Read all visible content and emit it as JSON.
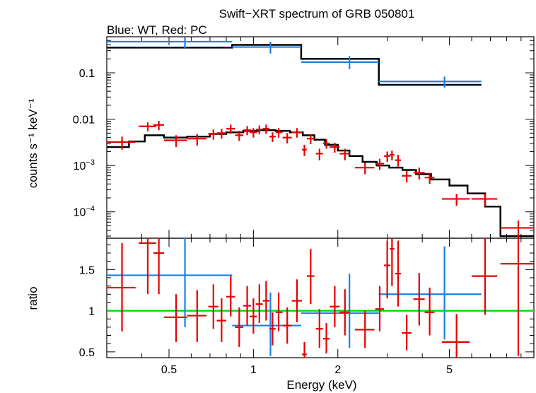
{
  "chart_data": [
    {
      "type": "scatter",
      "title": "Swift−XRT spectrum of GRB 050801",
      "subtitle": "Blue: WT, Red: PC",
      "ylabel": "counts s⁻¹ keV⁻¹",
      "yscale": "log",
      "xscale": "log",
      "xlim": [
        0.3,
        10
      ],
      "ylim": [
        2.7e-05,
        0.6
      ],
      "x_ticks": [
        0.5,
        1,
        2,
        5
      ],
      "y_tick_labels": [
        {
          "value": 0.1,
          "base": "0.1",
          "exp": ""
        },
        {
          "value": 0.01,
          "base": "0.01",
          "exp": ""
        },
        {
          "value": 0.001,
          "base": "10",
          "exp": "−3"
        },
        {
          "value": 0.0001,
          "base": "10",
          "exp": "−4"
        }
      ],
      "colors": {
        "WT": "#1a80e6",
        "PC": "#e60000",
        "model": "#000000"
      },
      "series": [
        {
          "points": [
            {
              "x": 0.57,
              "xlo": 0.3,
              "xhi": 0.84,
              "y": 0.47,
              "ylo": 0.34,
              "yhi": 0.6
            },
            {
              "x": 1.15,
              "xlo": 0.84,
              "xhi": 1.48,
              "y": 0.36,
              "ylo": 0.26,
              "yhi": 0.47
            },
            {
              "x": 2.2,
              "xlo": 1.48,
              "xhi": 2.8,
              "y": 0.17,
              "ylo": 0.12,
              "yhi": 0.23
            },
            {
              "x": 4.8,
              "xlo": 2.8,
              "xhi": 6.5,
              "y": 0.065,
              "ylo": 0.048,
              "yhi": 0.083
            }
          ]
        },
        {
          "points": [
            {
              "x": 0.34,
              "xlo": 0.3,
              "xhi": 0.38,
              "y": 0.0032,
              "ylo": 0.0022,
              "yhi": 0.0042
            },
            {
              "x": 0.42,
              "xlo": 0.39,
              "xhi": 0.45,
              "y": 0.007,
              "ylo": 0.0055,
              "yhi": 0.0085
            },
            {
              "x": 0.46,
              "xlo": 0.44,
              "xhi": 0.48,
              "y": 0.0075,
              "ylo": 0.0058,
              "yhi": 0.0092
            },
            {
              "x": 0.53,
              "xlo": 0.48,
              "xhi": 0.58,
              "y": 0.0035,
              "ylo": 0.0025,
              "yhi": 0.0045
            },
            {
              "x": 0.63,
              "xlo": 0.58,
              "xhi": 0.68,
              "y": 0.0038,
              "ylo": 0.0027,
              "yhi": 0.0048
            },
            {
              "x": 0.72,
              "xlo": 0.69,
              "xhi": 0.75,
              "y": 0.0048,
              "ylo": 0.0036,
              "yhi": 0.006
            },
            {
              "x": 0.77,
              "xlo": 0.74,
              "xhi": 0.8,
              "y": 0.005,
              "ylo": 0.0038,
              "yhi": 0.0062
            },
            {
              "x": 0.83,
              "xlo": 0.8,
              "xhi": 0.86,
              "y": 0.0062,
              "ylo": 0.0048,
              "yhi": 0.0076
            },
            {
              "x": 0.89,
              "xlo": 0.86,
              "xhi": 0.92,
              "y": 0.0045,
              "ylo": 0.0034,
              "yhi": 0.0056
            },
            {
              "x": 0.95,
              "xlo": 0.92,
              "xhi": 0.98,
              "y": 0.0058,
              "ylo": 0.0045,
              "yhi": 0.0071
            },
            {
              "x": 1.0,
              "xlo": 0.97,
              "xhi": 1.03,
              "y": 0.0052,
              "ylo": 0.004,
              "yhi": 0.0064
            },
            {
              "x": 1.05,
              "xlo": 1.02,
              "xhi": 1.08,
              "y": 0.006,
              "ylo": 0.0047,
              "yhi": 0.0073
            },
            {
              "x": 1.11,
              "xlo": 1.08,
              "xhi": 1.14,
              "y": 0.0062,
              "ylo": 0.0048,
              "yhi": 0.0076
            },
            {
              "x": 1.17,
              "xlo": 1.14,
              "xhi": 1.2,
              "y": 0.0042,
              "ylo": 0.0032,
              "yhi": 0.0052
            },
            {
              "x": 1.23,
              "xlo": 1.2,
              "xhi": 1.27,
              "y": 0.0052,
              "ylo": 0.004,
              "yhi": 0.0064
            },
            {
              "x": 1.32,
              "xlo": 1.27,
              "xhi": 1.37,
              "y": 0.004,
              "ylo": 0.003,
              "yhi": 0.005
            },
            {
              "x": 1.43,
              "xlo": 1.37,
              "xhi": 1.49,
              "y": 0.0052,
              "ylo": 0.004,
              "yhi": 0.0064
            },
            {
              "x": 1.52,
              "xlo": 1.49,
              "xhi": 1.55,
              "y": 0.0022,
              "ylo": 0.0016,
              "yhi": 0.0028
            },
            {
              "x": 1.6,
              "xlo": 1.55,
              "xhi": 1.65,
              "y": 0.0038,
              "ylo": 0.0029,
              "yhi": 0.0047
            },
            {
              "x": 1.72,
              "xlo": 1.67,
              "xhi": 1.77,
              "y": 0.0018,
              "ylo": 0.0013,
              "yhi": 0.0023
            },
            {
              "x": 1.82,
              "xlo": 1.77,
              "xhi": 1.87,
              "y": 0.003,
              "ylo": 0.0023,
              "yhi": 0.0037
            },
            {
              "x": 1.95,
              "xlo": 1.87,
              "xhi": 2.03,
              "y": 0.0025,
              "ylo": 0.0019,
              "yhi": 0.0031
            },
            {
              "x": 2.12,
              "xlo": 2.03,
              "xhi": 2.21,
              "y": 0.0018,
              "ylo": 0.0013,
              "yhi": 0.0023
            },
            {
              "x": 2.5,
              "xlo": 2.3,
              "xhi": 2.7,
              "y": 0.0009,
              "ylo": 0.00065,
              "yhi": 0.00115
            },
            {
              "x": 2.82,
              "xlo": 2.72,
              "xhi": 2.92,
              "y": 0.0011,
              "ylo": 0.0008,
              "yhi": 0.0014
            },
            {
              "x": 3.0,
              "xlo": 2.92,
              "xhi": 3.08,
              "y": 0.0016,
              "ylo": 0.0012,
              "yhi": 0.002
            },
            {
              "x": 3.12,
              "xlo": 3.06,
              "xhi": 3.18,
              "y": 0.0017,
              "ylo": 0.0013,
              "yhi": 0.0021
            },
            {
              "x": 3.28,
              "xlo": 3.2,
              "xhi": 3.36,
              "y": 0.0013,
              "ylo": 0.00095,
              "yhi": 0.0017
            },
            {
              "x": 3.52,
              "xlo": 3.38,
              "xhi": 3.66,
              "y": 0.0006,
              "ylo": 0.00043,
              "yhi": 0.00077
            },
            {
              "x": 3.9,
              "xlo": 3.72,
              "xhi": 4.08,
              "y": 0.0007,
              "ylo": 0.0005,
              "yhi": 0.0009
            },
            {
              "x": 4.25,
              "xlo": 4.08,
              "xhi": 4.42,
              "y": 0.00055,
              "ylo": 0.0004,
              "yhi": 0.0007
            },
            {
              "x": 5.3,
              "xlo": 4.7,
              "xhi": 5.9,
              "y": 0.00019,
              "ylo": 0.000135,
              "yhi": 0.000245
            },
            {
              "x": 6.7,
              "xlo": 6.0,
              "xhi": 7.4,
              "y": 0.00019,
              "ylo": 0.000135,
              "yhi": 0.000245
            },
            {
              "x": 8.8,
              "xlo": 7.6,
              "xhi": 10.0,
              "y": 4.5e-05,
              "ylo": 2.7e-05,
              "yhi": 6.5e-05
            }
          ]
        }
      ],
      "models": [
        {
          "steps": [
            [
              0.3,
              0.35
            ],
            [
              0.84,
              0.4
            ],
            [
              1.48,
              0.4
            ],
            [
              1.48,
              0.2
            ],
            [
              2.8,
              0.2
            ],
            [
              2.8,
              0.055
            ],
            [
              6.5,
              0.055
            ]
          ]
        },
        {
          "steps": [
            [
              0.3,
              0.0025
            ],
            [
              0.36,
              0.0033
            ],
            [
              0.41,
              0.0045
            ],
            [
              0.48,
              0.004
            ],
            [
              0.58,
              0.0042
            ],
            [
              0.7,
              0.0048
            ],
            [
              0.8,
              0.0052
            ],
            [
              0.92,
              0.0056
            ],
            [
              1.05,
              0.0058
            ],
            [
              1.2,
              0.0056
            ],
            [
              1.35,
              0.0052
            ],
            [
              1.5,
              0.0045
            ],
            [
              1.65,
              0.0036
            ],
            [
              1.8,
              0.0028
            ],
            [
              2.0,
              0.0021
            ],
            [
              2.2,
              0.0016
            ],
            [
              2.45,
              0.0012
            ],
            [
              2.75,
              0.001
            ],
            [
              3.05,
              0.0009
            ],
            [
              3.4,
              0.0008
            ],
            [
              3.8,
              0.00065
            ],
            [
              4.3,
              0.0005
            ],
            [
              5.0,
              0.00037
            ],
            [
              5.8,
              0.00025
            ],
            [
              6.7,
              0.00013
            ],
            [
              7.6,
              3e-05
            ],
            [
              10.0,
              3e-05
            ]
          ]
        }
      ]
    },
    {
      "type": "scatter",
      "xlabel": "Energy (keV)",
      "ylabel": "ratio",
      "xscale": "log",
      "xlim": [
        0.3,
        10
      ],
      "ylim": [
        0.43,
        1.88
      ],
      "x_ticks": [
        0.5,
        1,
        2,
        5
      ],
      "y_ticks": [
        0.5,
        1,
        1.5
      ],
      "reference_line": 1,
      "colors": {
        "WT": "#1a80e6",
        "PC": "#e60000",
        "reference": "#00e000"
      },
      "series": [
        {
          "points": [
            {
              "x": 0.57,
              "xlo": 0.3,
              "xhi": 0.84,
              "y": 1.43,
              "ylo": 0.8,
              "yhi": 1.88
            },
            {
              "x": 1.15,
              "xlo": 0.84,
              "xhi": 1.48,
              "y": 0.82,
              "ylo": 0.45,
              "yhi": 1.22
            },
            {
              "x": 2.2,
              "xlo": 1.48,
              "xhi": 2.8,
              "y": 0.97,
              "ylo": 0.55,
              "yhi": 1.45
            },
            {
              "x": 4.8,
              "xlo": 2.8,
              "xhi": 6.5,
              "y": 1.2,
              "ylo": 0.65,
              "yhi": 1.78
            }
          ]
        },
        {
          "points": [
            {
              "x": 0.34,
              "xlo": 0.3,
              "xhi": 0.38,
              "y": 1.28,
              "ylo": 0.75,
              "yhi": 1.82
            },
            {
              "x": 0.42,
              "xlo": 0.39,
              "xhi": 0.45,
              "y": 1.82,
              "ylo": 1.2,
              "yhi": 1.88
            },
            {
              "x": 0.46,
              "xlo": 0.44,
              "xhi": 0.48,
              "y": 1.7,
              "ylo": 1.2,
              "yhi": 1.88
            },
            {
              "x": 0.53,
              "xlo": 0.48,
              "xhi": 0.58,
              "y": 0.92,
              "ylo": 0.62,
              "yhi": 1.2
            },
            {
              "x": 0.63,
              "xlo": 0.58,
              "xhi": 0.68,
              "y": 0.94,
              "ylo": 0.62,
              "yhi": 1.25
            },
            {
              "x": 0.72,
              "xlo": 0.69,
              "xhi": 0.75,
              "y": 1.05,
              "ylo": 0.78,
              "yhi": 1.32
            },
            {
              "x": 0.77,
              "xlo": 0.74,
              "xhi": 0.8,
              "y": 0.88,
              "ylo": 0.62,
              "yhi": 1.15
            },
            {
              "x": 0.83,
              "xlo": 0.8,
              "xhi": 0.86,
              "y": 1.17,
              "ylo": 0.93,
              "yhi": 1.42
            },
            {
              "x": 0.89,
              "xlo": 0.86,
              "xhi": 0.92,
              "y": 0.8,
              "ylo": 0.56,
              "yhi": 1.04
            },
            {
              "x": 0.95,
              "xlo": 0.92,
              "xhi": 0.98,
              "y": 1.06,
              "ylo": 0.82,
              "yhi": 1.3
            },
            {
              "x": 1.0,
              "xlo": 0.97,
              "xhi": 1.03,
              "y": 0.93,
              "ylo": 0.72,
              "yhi": 1.15
            },
            {
              "x": 1.05,
              "xlo": 1.02,
              "xhi": 1.08,
              "y": 1.08,
              "ylo": 0.85,
              "yhi": 1.32
            },
            {
              "x": 1.11,
              "xlo": 1.08,
              "xhi": 1.14,
              "y": 1.12,
              "ylo": 0.88,
              "yhi": 1.36
            },
            {
              "x": 1.17,
              "xlo": 1.14,
              "xhi": 1.2,
              "y": 0.78,
              "ylo": 0.58,
              "yhi": 0.98
            },
            {
              "x": 1.23,
              "xlo": 1.2,
              "xhi": 1.27,
              "y": 0.98,
              "ylo": 0.75,
              "yhi": 1.22
            },
            {
              "x": 1.32,
              "xlo": 1.27,
              "xhi": 1.37,
              "y": 0.82,
              "ylo": 0.6,
              "yhi": 1.04
            },
            {
              "x": 1.43,
              "xlo": 1.37,
              "xhi": 1.49,
              "y": 1.12,
              "ylo": 0.86,
              "yhi": 1.38
            },
            {
              "x": 1.52,
              "xlo": 1.49,
              "xhi": 1.55,
              "y": 0.47,
              "ylo": 0.43,
              "yhi": 0.62
            },
            {
              "x": 1.6,
              "xlo": 1.55,
              "xhi": 1.65,
              "y": 1.42,
              "ylo": 1.08,
              "yhi": 1.75
            },
            {
              "x": 1.72,
              "xlo": 1.67,
              "xhi": 1.77,
              "y": 0.78,
              "ylo": 0.55,
              "yhi": 1.02
            },
            {
              "x": 1.82,
              "xlo": 1.77,
              "xhi": 1.87,
              "y": 0.66,
              "ylo": 0.48,
              "yhi": 0.85
            },
            {
              "x": 1.95,
              "xlo": 1.87,
              "xhi": 2.03,
              "y": 1.05,
              "ylo": 0.8,
              "yhi": 1.3
            },
            {
              "x": 2.12,
              "xlo": 2.03,
              "xhi": 2.21,
              "y": 0.98,
              "ylo": 0.7,
              "yhi": 1.26
            },
            {
              "x": 2.5,
              "xlo": 2.3,
              "xhi": 2.7,
              "y": 0.77,
              "ylo": 0.55,
              "yhi": 1.0
            },
            {
              "x": 2.82,
              "xlo": 2.72,
              "xhi": 2.92,
              "y": 1.02,
              "ylo": 0.75,
              "yhi": 1.3
            },
            {
              "x": 3.0,
              "xlo": 2.92,
              "xhi": 3.08,
              "y": 1.55,
              "ylo": 1.15,
              "yhi": 1.85
            },
            {
              "x": 3.12,
              "xlo": 3.06,
              "xhi": 3.18,
              "y": 1.75,
              "ylo": 1.3,
              "yhi": 1.88
            },
            {
              "x": 3.28,
              "xlo": 3.2,
              "xhi": 3.36,
              "y": 1.45,
              "ylo": 1.05,
              "yhi": 1.85
            },
            {
              "x": 3.52,
              "xlo": 3.38,
              "xhi": 3.66,
              "y": 0.73,
              "ylo": 0.52,
              "yhi": 0.95
            },
            {
              "x": 3.9,
              "xlo": 3.72,
              "xhi": 4.08,
              "y": 1.14,
              "ylo": 0.82,
              "yhi": 1.46
            },
            {
              "x": 4.25,
              "xlo": 4.08,
              "xhi": 4.42,
              "y": 0.98,
              "ylo": 0.7,
              "yhi": 1.28
            },
            {
              "x": 5.3,
              "xlo": 4.7,
              "xhi": 5.9,
              "y": 0.62,
              "ylo": 0.43,
              "yhi": 0.96
            },
            {
              "x": 6.7,
              "xlo": 6.0,
              "xhi": 7.4,
              "y": 1.42,
              "ylo": 0.95,
              "yhi": 1.88
            },
            {
              "x": 8.8,
              "xlo": 7.6,
              "xhi": 10.0,
              "y": 1.57,
              "ylo": 0.45,
              "yhi": 1.88
            }
          ]
        }
      ]
    }
  ]
}
